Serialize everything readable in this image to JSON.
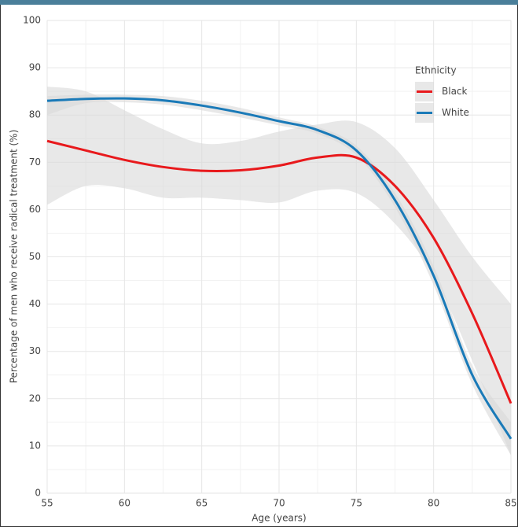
{
  "chart_data": {
    "type": "line",
    "x_label": "Age (years)",
    "y_label": "Percentage of men who receive radical treatment (%)",
    "legend_title": "Ethnicity",
    "legend_position": "top-right",
    "grid": true,
    "band_color": "#d9d9d9",
    "x": [
      55,
      57.5,
      60,
      62.5,
      65,
      67.5,
      70,
      72.5,
      75,
      77.5,
      80,
      82.5,
      85
    ],
    "series": [
      {
        "name": "Black",
        "color": "#e8191c",
        "values": [
          74.5,
          72.5,
          70.5,
          69,
          68.2,
          68.3,
          69.3,
          71,
          71,
          65,
          54,
          38,
          19
        ],
        "upper": [
          86,
          85,
          81,
          77,
          74,
          74.5,
          76.5,
          78,
          78.5,
          73,
          62,
          50,
          40
        ],
        "lower": [
          61,
          65,
          64.5,
          62.5,
          62.5,
          62,
          61.5,
          64,
          63.5,
          57,
          46,
          28,
          8
        ]
      },
      {
        "name": "White",
        "color": "#1a7ab8",
        "values": [
          83,
          83.4,
          83.5,
          83.1,
          82,
          80.5,
          78.7,
          76.8,
          72.5,
          62,
          46,
          25,
          11.5
        ],
        "upper": [
          84,
          84.3,
          84.3,
          84,
          83,
          81.5,
          79.5,
          77.5,
          73.5,
          63.5,
          48,
          27,
          15
        ],
        "lower": [
          80,
          82.5,
          82.7,
          82.2,
          81,
          79.5,
          77.8,
          76,
          71.5,
          60.5,
          44,
          23,
          8
        ]
      }
    ],
    "xlim": [
      55,
      85
    ],
    "xticks": [
      55,
      60,
      65,
      70,
      75,
      80,
      85
    ],
    "ylim": [
      0,
      100
    ],
    "yticks": [
      0,
      10,
      20,
      30,
      40,
      50,
      60,
      70,
      80,
      90,
      100
    ]
  }
}
